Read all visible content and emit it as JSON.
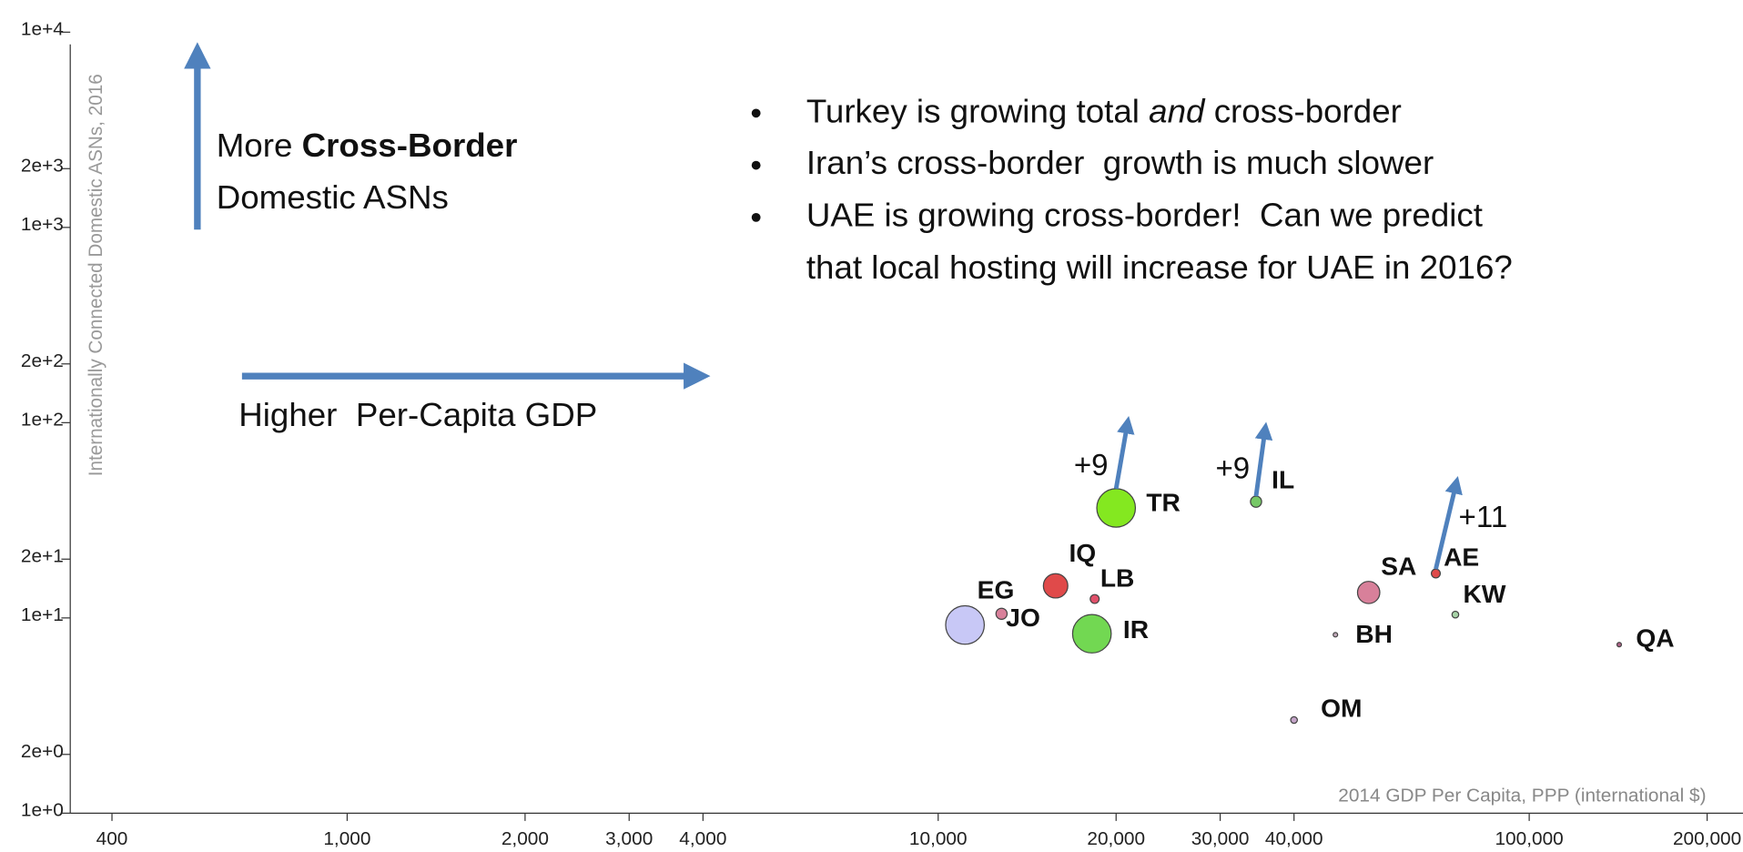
{
  "chart_data": {
    "type": "scatter",
    "x_label": "2014 GDP Per Capita, PPP (international $)",
    "y_label": "Internationally Connected Domestic ASNs, 2016",
    "xlog": true,
    "ylog": true,
    "xlim": [
      340,
      230000
    ],
    "ylim": [
      1,
      10000
    ],
    "xticks": [
      400,
      {
        "value": 1000,
        "label": "1,000"
      },
      {
        "value": 2000,
        "label": "2,000"
      },
      {
        "value": 3000,
        "label": "3,000"
      },
      {
        "value": 4000,
        "label": "4,000"
      },
      {
        "value": 10000,
        "label": "10,000"
      },
      {
        "value": 20000,
        "label": "20,000"
      },
      {
        "value": 30000,
        "label": "30,000"
      },
      {
        "value": 40000,
        "label": "40,000"
      },
      {
        "value": 100000,
        "label": "100,000"
      },
      {
        "value": 200000,
        "label": "200,000"
      }
    ],
    "yticks": [
      {
        "value": 1,
        "label": "1e+0"
      },
      {
        "value": 2,
        "label": "2e+0"
      },
      {
        "value": 10,
        "label": "1e+1"
      },
      {
        "value": 20,
        "label": "2e+1"
      },
      {
        "value": 100,
        "label": "1e+2"
      },
      {
        "value": 200,
        "label": "2e+2"
      },
      {
        "value": 1000,
        "label": "1e+3"
      },
      {
        "value": 2000,
        "label": "2e+3"
      },
      {
        "value": 10000,
        "label": "1e+4"
      }
    ],
    "labels": [
      "EG",
      "JO",
      "IQ",
      "LB",
      "IR",
      "TR",
      "IL",
      "SA",
      "AE",
      "KW",
      "BH",
      "OM",
      "QA"
    ],
    "x": [
      11100,
      12800,
      15800,
      18400,
      18200,
      20000,
      34500,
      53500,
      69500,
      75000,
      47000,
      40000,
      142000
    ],
    "y": [
      9.2,
      10.5,
      14.6,
      12.5,
      8.3,
      36.6,
      39.4,
      13.5,
      16.9,
      10.4,
      8.2,
      3.0,
      7.3
    ],
    "sizes": [
      300,
      25,
      120,
      16,
      300,
      300,
      25,
      100,
      16,
      9,
      4,
      9,
      4
    ],
    "colors": [
      "#c8c8f6",
      "#d8809a",
      "#e04a4a",
      "#e0506a",
      "#72d852",
      "#84e820",
      "#76c866",
      "#d8809a",
      "#e04a4a",
      "#a8d4a8",
      "#c0a8b8",
      "#c4a4c8",
      "#b06488"
    ],
    "annotations": [
      "+9",
      "+9",
      "+11"
    ],
    "left_notes": {
      "up_prefix": "More ",
      "up_bold": "Cross-Border",
      "up_line2": "Domestic ASNs",
      "right": "Higher  Per-Capita GDP"
    },
    "bullets": [
      [
        "Turkey is growing total ",
        "and",
        " cross-border"
      ],
      [
        "Iran’s cross-border  growth is much slower"
      ],
      [
        "UAE is growing cross-border!  Can we predict",
        "that local hosting will increase for UAE in 2016?"
      ]
    ]
  }
}
